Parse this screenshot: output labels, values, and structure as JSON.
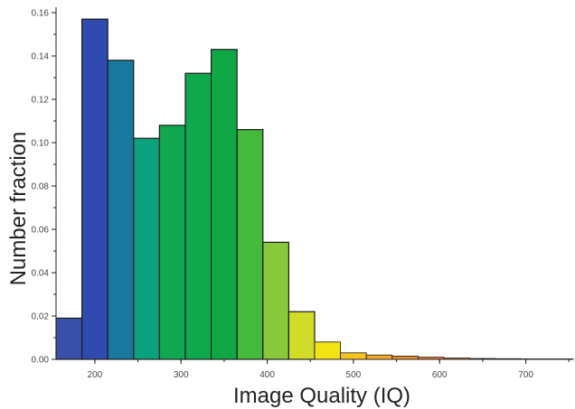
{
  "chart_data": {
    "type": "bar",
    "title": "",
    "xlabel": "Image Quality (IQ)",
    "ylabel": "Number fraction",
    "xlim": [
      155,
      755
    ],
    "ylim": [
      0,
      0.16
    ],
    "x_ticks": [
      "200",
      "300",
      "400",
      "500",
      "600",
      "700"
    ],
    "x_tick_values": [
      200,
      300,
      400,
      500,
      600,
      700
    ],
    "y_ticks": [
      "0.00",
      "0.02",
      "0.04",
      "0.06",
      "0.08",
      "0.10",
      "0.12",
      "0.14",
      "0.16"
    ],
    "y_tick_values": [
      0,
      0.02,
      0.04,
      0.06,
      0.08,
      0.1,
      0.12,
      0.14,
      0.16
    ],
    "bin_width": 30,
    "bin_starts": [
      155,
      185,
      215,
      245,
      275,
      305,
      335,
      365,
      395,
      425,
      455,
      485,
      515,
      545,
      575,
      605,
      635,
      665,
      695,
      725
    ],
    "values": [
      0.019,
      0.157,
      0.138,
      0.102,
      0.108,
      0.132,
      0.143,
      0.106,
      0.054,
      0.022,
      0.008,
      0.003,
      0.002,
      0.0015,
      0.001,
      0.0006,
      0.0004,
      0.0003,
      0.0002,
      0.0001
    ],
    "bar_colors": [
      "#3a4fa8",
      "#2f4bb0",
      "#19789e",
      "#0aa17e",
      "#10a851",
      "#0ea94d",
      "#10a845",
      "#45b93c",
      "#88c83a",
      "#d0dc26",
      "#f3e313",
      "#f6c51c",
      "#f4a92a",
      "#ef8e2c",
      "#e9792d",
      "#de6a2c",
      "#d25d2c",
      "#c9532b",
      "#c04a2a",
      "#b8422a"
    ],
    "grid": false
  }
}
